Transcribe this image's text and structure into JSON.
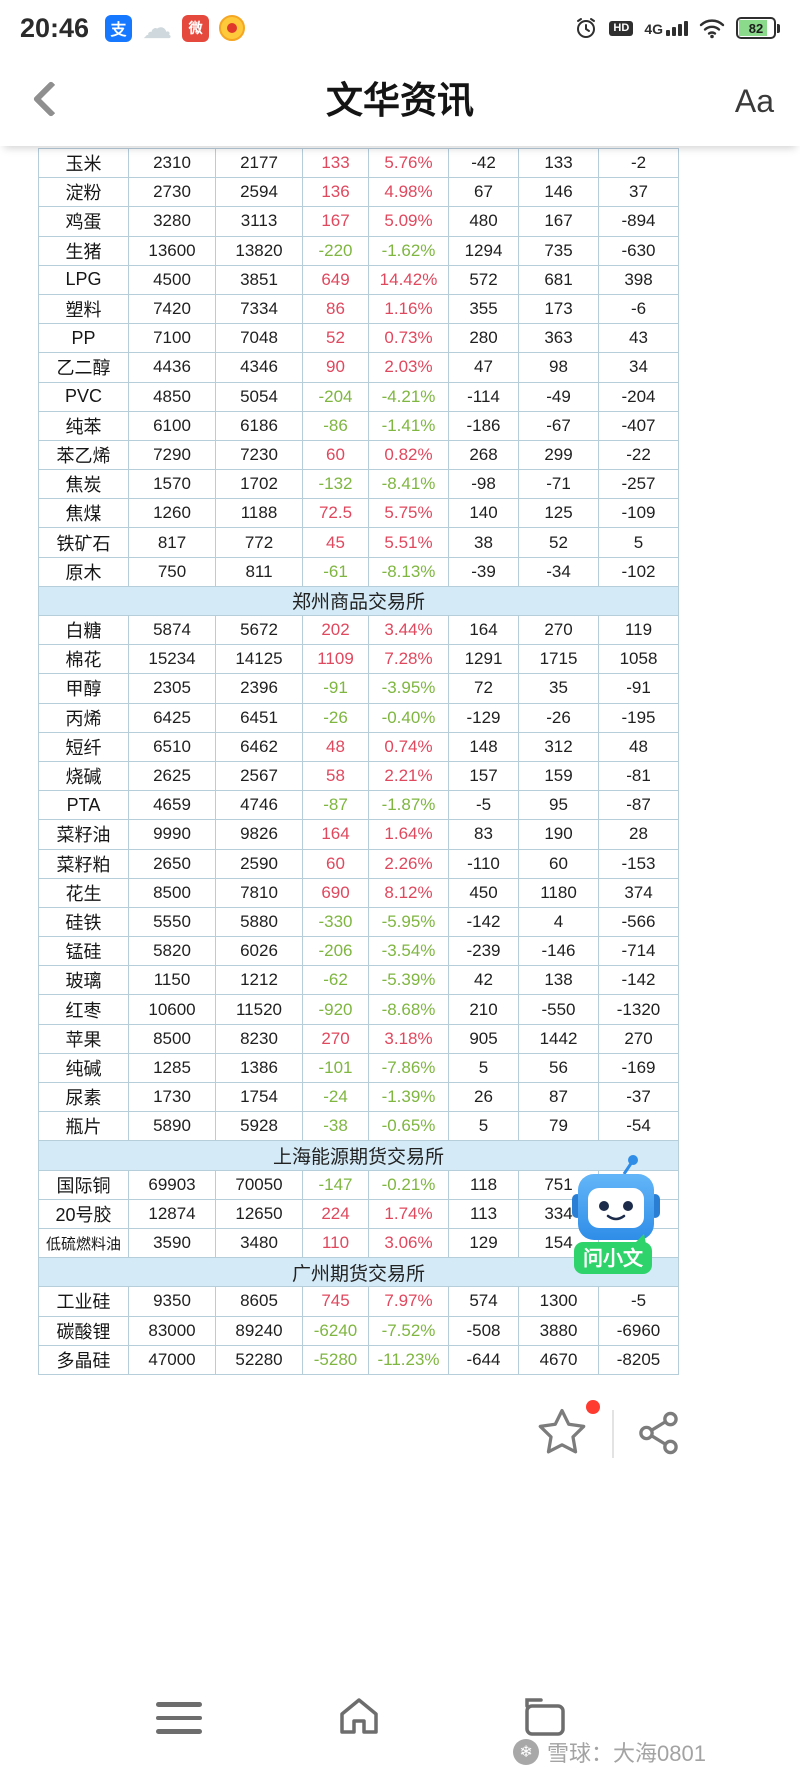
{
  "status_bar": {
    "time": "20:46",
    "alipay_label": "支",
    "red_app_label": "微",
    "hd_label": "HD",
    "network_label": "4G",
    "battery": "82"
  },
  "header": {
    "title": "文华资讯",
    "font_label": "Aa"
  },
  "colors": {
    "up": "#e0485e",
    "down": "#7fb640",
    "section_bg": "#d4eaf7"
  },
  "table": {
    "sections": [
      {
        "exchange": "",
        "rows": [
          {
            "name": "玉米",
            "values": [
              "2310",
              "2177",
              "133",
              "5.76%",
              "-42",
              "133",
              "-2"
            ]
          },
          {
            "name": "淀粉",
            "values": [
              "2730",
              "2594",
              "136",
              "4.98%",
              "67",
              "146",
              "37"
            ]
          },
          {
            "name": "鸡蛋",
            "values": [
              "3280",
              "3113",
              "167",
              "5.09%",
              "480",
              "167",
              "-894"
            ]
          },
          {
            "name": "生猪",
            "values": [
              "13600",
              "13820",
              "-220",
              "-1.62%",
              "1294",
              "735",
              "-630"
            ]
          },
          {
            "name": "LPG",
            "values": [
              "4500",
              "3851",
              "649",
              "14.42%",
              "572",
              "681",
              "398"
            ]
          },
          {
            "name": "塑料",
            "values": [
              "7420",
              "7334",
              "86",
              "1.16%",
              "355",
              "173",
              "-6"
            ]
          },
          {
            "name": "PP",
            "values": [
              "7100",
              "7048",
              "52",
              "0.73%",
              "280",
              "363",
              "43"
            ]
          },
          {
            "name": "乙二醇",
            "values": [
              "4436",
              "4346",
              "90",
              "2.03%",
              "47",
              "98",
              "34"
            ]
          },
          {
            "name": "PVC",
            "values": [
              "4850",
              "5054",
              "-204",
              "-4.21%",
              "-114",
              "-49",
              "-204"
            ]
          },
          {
            "name": "纯苯",
            "values": [
              "6100",
              "6186",
              "-86",
              "-1.41%",
              "-186",
              "-67",
              "-407"
            ]
          },
          {
            "name": "苯乙烯",
            "values": [
              "7290",
              "7230",
              "60",
              "0.82%",
              "268",
              "299",
              "-22"
            ]
          },
          {
            "name": "焦炭",
            "values": [
              "1570",
              "1702",
              "-132",
              "-8.41%",
              "-98",
              "-71",
              "-257"
            ]
          },
          {
            "name": "焦煤",
            "values": [
              "1260",
              "1188",
              "72.5",
              "5.75%",
              "140",
              "125",
              "-109"
            ]
          },
          {
            "name": "铁矿石",
            "values": [
              "817",
              "772",
              "45",
              "5.51%",
              "38",
              "52",
              "5"
            ]
          },
          {
            "name": "原木",
            "values": [
              "750",
              "811",
              "-61",
              "-8.13%",
              "-39",
              "-34",
              "-102"
            ]
          }
        ]
      },
      {
        "exchange": "郑州商品交易所",
        "rows": [
          {
            "name": "白糖",
            "values": [
              "5874",
              "5672",
              "202",
              "3.44%",
              "164",
              "270",
              "119"
            ]
          },
          {
            "name": "棉花",
            "values": [
              "15234",
              "14125",
              "1109",
              "7.28%",
              "1291",
              "1715",
              "1058"
            ]
          },
          {
            "name": "甲醇",
            "values": [
              "2305",
              "2396",
              "-91",
              "-3.95%",
              "72",
              "35",
              "-91"
            ]
          },
          {
            "name": "丙烯",
            "values": [
              "6425",
              "6451",
              "-26",
              "-0.40%",
              "-129",
              "-26",
              "-195"
            ]
          },
          {
            "name": "短纤",
            "values": [
              "6510",
              "6462",
              "48",
              "0.74%",
              "148",
              "312",
              "48"
            ]
          },
          {
            "name": "烧碱",
            "values": [
              "2625",
              "2567",
              "58",
              "2.21%",
              "157",
              "159",
              "-81"
            ]
          },
          {
            "name": "PTA",
            "values": [
              "4659",
              "4746",
              "-87",
              "-1.87%",
              "-5",
              "95",
              "-87"
            ]
          },
          {
            "name": "菜籽油",
            "values": [
              "9990",
              "9826",
              "164",
              "1.64%",
              "83",
              "190",
              "28"
            ]
          },
          {
            "name": "菜籽粕",
            "values": [
              "2650",
              "2590",
              "60",
              "2.26%",
              "-110",
              "60",
              "-153"
            ]
          },
          {
            "name": "花生",
            "values": [
              "8500",
              "7810",
              "690",
              "8.12%",
              "450",
              "1180",
              "374"
            ]
          },
          {
            "name": "硅铁",
            "values": [
              "5550",
              "5880",
              "-330",
              "-5.95%",
              "-142",
              "4",
              "-566"
            ]
          },
          {
            "name": "锰硅",
            "values": [
              "5820",
              "6026",
              "-206",
              "-3.54%",
              "-239",
              "-146",
              "-714"
            ]
          },
          {
            "name": "玻璃",
            "values": [
              "1150",
              "1212",
              "-62",
              "-5.39%",
              "42",
              "138",
              "-142"
            ]
          },
          {
            "name": "红枣",
            "values": [
              "10600",
              "11520",
              "-920",
              "-8.68%",
              "210",
              "-550",
              "-1320"
            ]
          },
          {
            "name": "苹果",
            "values": [
              "8500",
              "8230",
              "270",
              "3.18%",
              "905",
              "1442",
              "270"
            ]
          },
          {
            "name": "纯碱",
            "values": [
              "1285",
              "1386",
              "-101",
              "-7.86%",
              "5",
              "56",
              "-169"
            ]
          },
          {
            "name": "尿素",
            "values": [
              "1730",
              "1754",
              "-24",
              "-1.39%",
              "26",
              "87",
              "-37"
            ]
          },
          {
            "name": "瓶片",
            "values": [
              "5890",
              "5928",
              "-38",
              "-0.65%",
              "5",
              "79",
              "-54"
            ]
          }
        ]
      },
      {
        "exchange": "上海能源期货交易所",
        "rows": [
          {
            "name": "国际铜",
            "values": [
              "69903",
              "70050",
              "-147",
              "-0.21%",
              "118",
              "751",
              ""
            ]
          },
          {
            "name": "20号胶",
            "values": [
              "12874",
              "12650",
              "224",
              "1.74%",
              "113",
              "334",
              ""
            ]
          },
          {
            "name": "低硫燃料油",
            "values": [
              "3590",
              "3480",
              "110",
              "3.06%",
              "129",
              "154",
              ""
            ]
          }
        ]
      },
      {
        "exchange": "广州期货交易所",
        "rows": [
          {
            "name": "工业硅",
            "values": [
              "9350",
              "8605",
              "745",
              "7.97%",
              "574",
              "1300",
              "-5"
            ]
          },
          {
            "name": "碳酸锂",
            "values": [
              "83000",
              "89240",
              "-6240",
              "-7.52%",
              "-508",
              "3880",
              "-6960"
            ]
          },
          {
            "name": "多晶硅",
            "values": [
              "47000",
              "52280",
              "-5280",
              "-11.23%",
              "-644",
              "4670",
              "-8205"
            ]
          }
        ]
      }
    ]
  },
  "assistant": {
    "label": "问小文"
  },
  "watermark": {
    "text": "雪球：大海0801"
  }
}
